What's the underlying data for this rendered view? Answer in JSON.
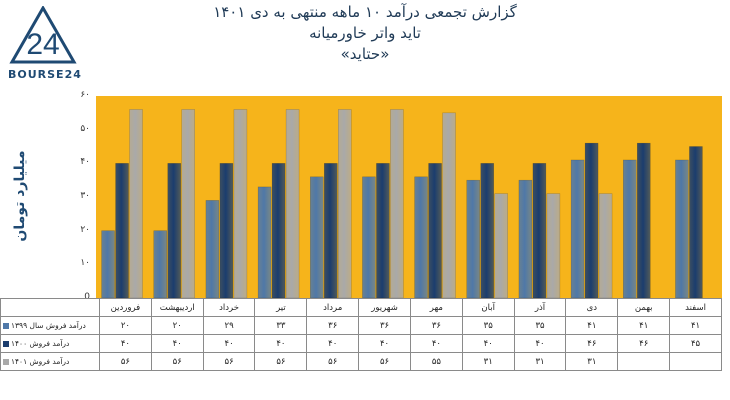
{
  "logo": {
    "mark": "24",
    "text": "BOURSE24"
  },
  "header": {
    "line1": "گزارش تجمعی درآمد ۱۰ ماهه منتهی به دی ۱۴۰۱",
    "line2": "تاید واتر خاورمیانه",
    "line3": "«حتاید»"
  },
  "colors": {
    "plot_bg": "#f6b41b",
    "s1": "#4f78a8",
    "s2": "#1b3d6e",
    "s3": "#a9a9a9"
  },
  "chart_data": {
    "type": "bar",
    "ylabel": "میلیارد تومان",
    "ylim": [
      0,
      60
    ],
    "yticks": [
      0,
      10,
      20,
      30,
      40,
      50,
      60
    ],
    "ytick_labels": [
      "0",
      "۱۰",
      "۲۰",
      "۳۰",
      "۴۰",
      "۵۰",
      "۶۰"
    ],
    "categories": [
      "فروردین",
      "اردیبهشت",
      "خرداد",
      "تیر",
      "مرداد",
      "شهریور",
      "مهر",
      "آبان",
      "آذر",
      "دی",
      "بهمن",
      "اسفند"
    ],
    "series": [
      {
        "name": "درآمد فروش سال ۱۳۹۹",
        "values": [
          20,
          20,
          29,
          33,
          36,
          36,
          36,
          35,
          35,
          41,
          41,
          41
        ],
        "labels": [
          "۲۰",
          "۲۰",
          "۲۹",
          "۳۳",
          "۳۶",
          "۳۶",
          "۳۶",
          "۳۵",
          "۳۵",
          "۴۱",
          "۴۱",
          "۴۱"
        ]
      },
      {
        "name": "درآمد فروش ۱۴۰۰",
        "values": [
          40,
          40,
          40,
          40,
          40,
          40,
          40,
          40,
          40,
          46,
          46,
          45
        ],
        "labels": [
          "۴۰",
          "۴۰",
          "۴۰",
          "۴۰",
          "۴۰",
          "۴۰",
          "۴۰",
          "۴۰",
          "۴۰",
          "۴۶",
          "۴۶",
          "۴۵"
        ]
      },
      {
        "name": "درآمد فروش ۱۴۰۱",
        "values": [
          56,
          56,
          56,
          56,
          56,
          56,
          55,
          31,
          31,
          31,
          null,
          null
        ],
        "labels": [
          "۵۶",
          "۵۶",
          "۵۶",
          "۵۶",
          "۵۶",
          "۵۶",
          "۵۵",
          "۳۱",
          "۳۱",
          "۳۱",
          "",
          ""
        ]
      }
    ],
    "grid": false,
    "legend": "table-left"
  }
}
